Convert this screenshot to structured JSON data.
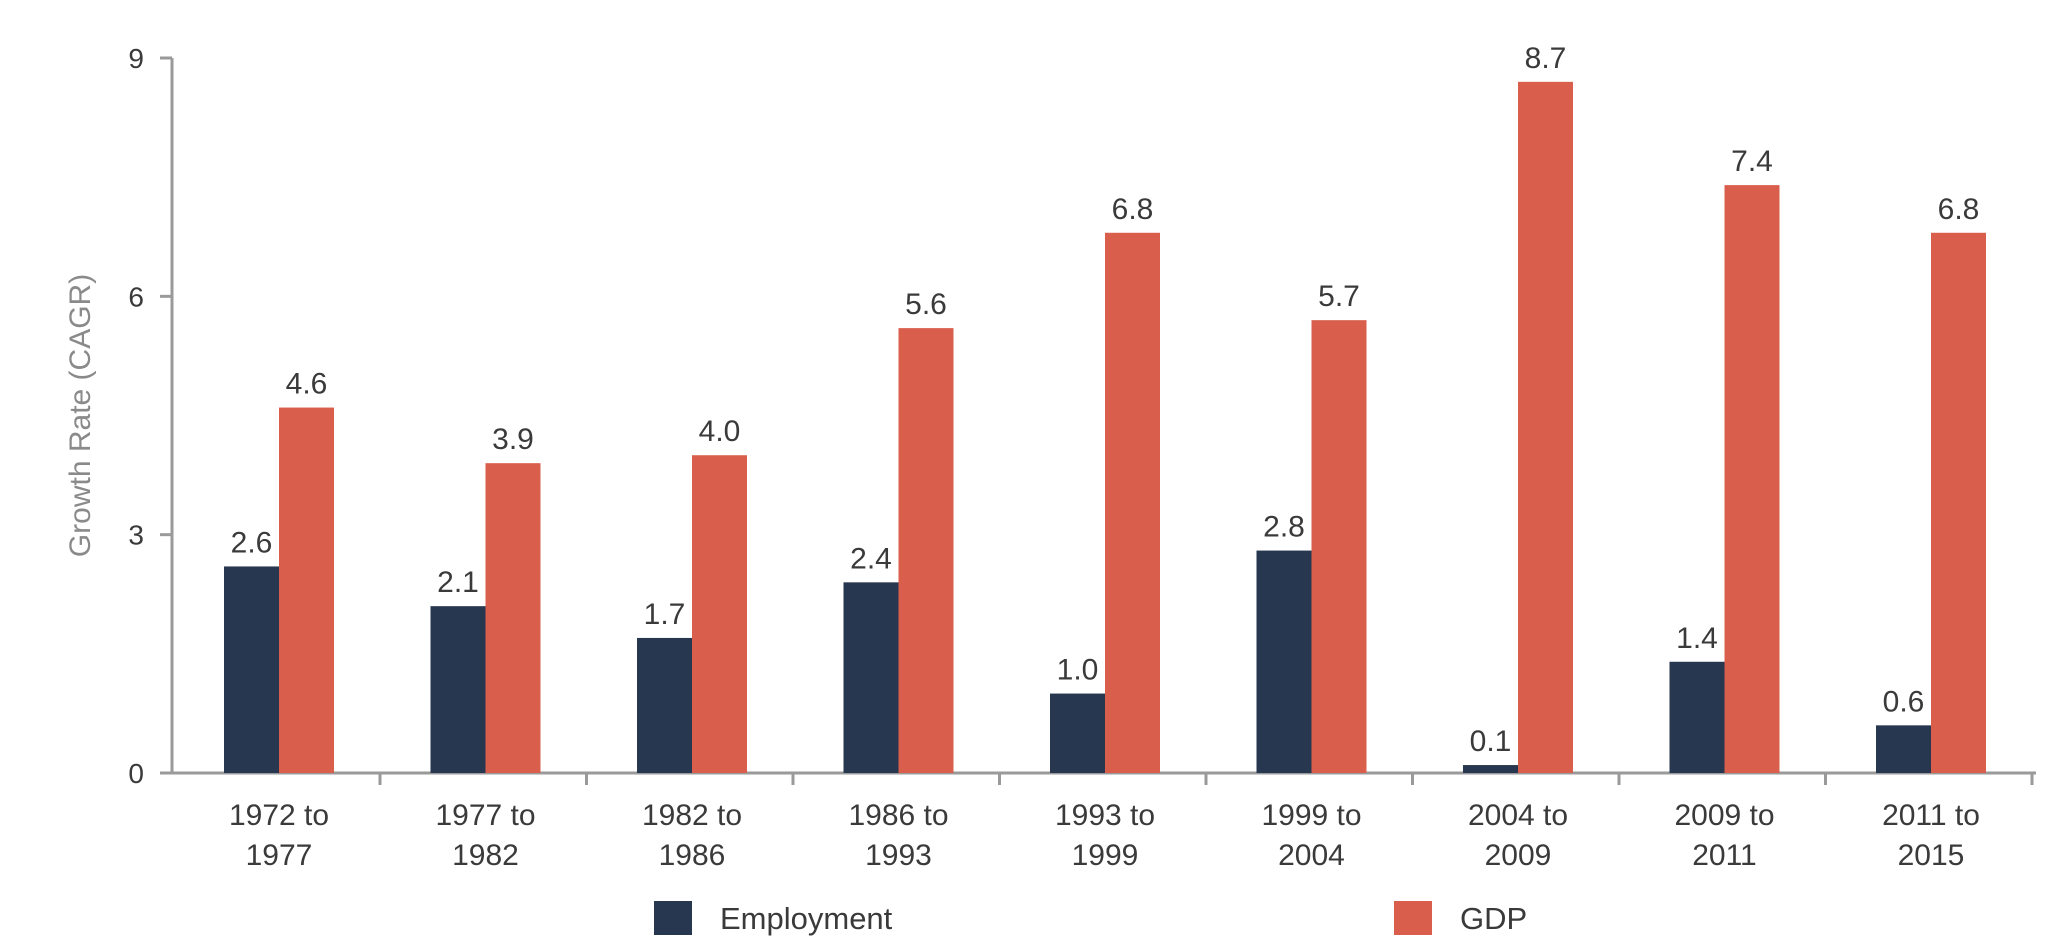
{
  "chart_data": {
    "type": "bar",
    "title": "",
    "xlabel": "",
    "ylabel": "Growth Rate (CAGR)",
    "ylim": [
      0,
      9
    ],
    "yticks": [
      0,
      3,
      6,
      9
    ],
    "grid": false,
    "legend_position": "bottom",
    "categories": [
      [
        "1972 to",
        "1977"
      ],
      [
        "1977 to",
        "1982"
      ],
      [
        "1982 to",
        "1986"
      ],
      [
        "1986 to",
        "1993"
      ],
      [
        "1993 to",
        "1999"
      ],
      [
        "1999 to",
        "2004"
      ],
      [
        "2004 to",
        "2009"
      ],
      [
        "2009 to",
        "2011"
      ],
      [
        "2011 to",
        "2015"
      ]
    ],
    "series": [
      {
        "name": "Employment",
        "color": "#283750",
        "values": [
          2.6,
          2.1,
          1.7,
          2.4,
          1.0,
          2.8,
          0.1,
          1.4,
          0.6
        ],
        "labels": [
          "2.6",
          "2.1",
          "1.7",
          "2.4",
          "1.0",
          "2.8",
          "0.1",
          "1.4",
          "0.6"
        ]
      },
      {
        "name": "GDP",
        "color": "#d95f4c",
        "values": [
          4.6,
          3.9,
          4.0,
          5.6,
          6.8,
          5.7,
          8.7,
          7.4,
          6.8
        ],
        "labels": [
          "4.6",
          "3.9",
          "4.0",
          "5.6",
          "6.8",
          "5.7",
          "8.7",
          "7.4",
          "6.8"
        ]
      }
    ]
  }
}
